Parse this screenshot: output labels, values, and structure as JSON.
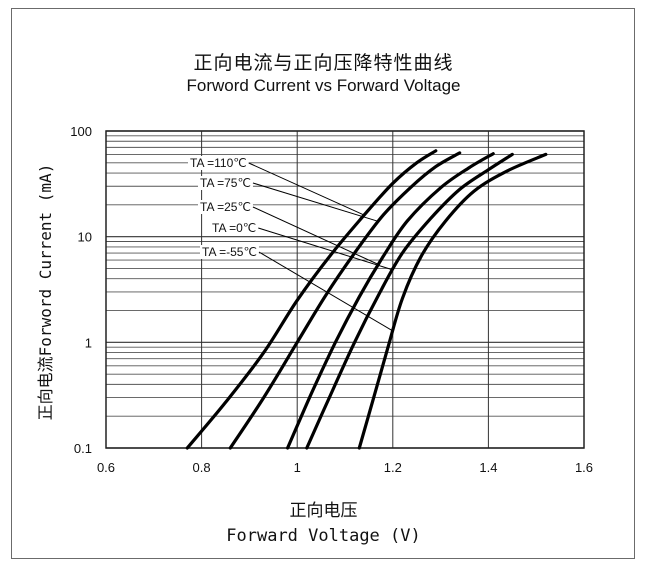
{
  "chart_data": {
    "type": "line",
    "title": "正向电流与正向压降特性曲线",
    "subtitle": "Forword Current vs Forward Voltage",
    "xlabel_cn": "正向电压",
    "xlabel": "Forward Voltage (V)",
    "ylabel": "正向电流Forword Current (mA)",
    "xlim": [
      0.6,
      1.6
    ],
    "ylim": [
      0.1,
      100
    ],
    "yscale": "log",
    "x_ticks": [
      "0.6",
      "0.8",
      "1",
      "1.2",
      "1.4",
      "1.6"
    ],
    "y_ticks": [
      "0.1",
      "1",
      "10",
      "100"
    ],
    "grid": true,
    "series": [
      {
        "name": "TA =110℃",
        "x": [
          0.77,
          0.85,
          0.93,
          1.0,
          1.07,
          1.14,
          1.2,
          1.25,
          1.29
        ],
        "y": [
          0.1,
          0.27,
          0.8,
          2.5,
          6.7,
          16,
          32,
          50,
          65
        ]
      },
      {
        "name": "TA =75℃",
        "x": [
          0.86,
          0.93,
          1.0,
          1.06,
          1.12,
          1.18,
          1.24,
          1.29,
          1.34
        ],
        "y": [
          0.1,
          0.3,
          1.0,
          2.8,
          7.0,
          16,
          30,
          46,
          62
        ]
      },
      {
        "name": "TA =25℃",
        "x": [
          0.98,
          1.03,
          1.08,
          1.13,
          1.18,
          1.23,
          1.3,
          1.36,
          1.41
        ],
        "y": [
          0.1,
          0.33,
          1.0,
          2.7,
          6.5,
          14,
          29,
          45,
          61
        ]
      },
      {
        "name": "TA =0℃",
        "x": [
          1.02,
          1.07,
          1.12,
          1.17,
          1.22,
          1.28,
          1.34,
          1.4,
          1.45
        ],
        "y": [
          0.1,
          0.32,
          1.0,
          2.8,
          7.0,
          15,
          28,
          43,
          60
        ]
      },
      {
        "name": "TA =-55℃",
        "x": [
          1.13,
          1.16,
          1.19,
          1.22,
          1.26,
          1.31,
          1.37,
          1.44,
          1.52
        ],
        "y": [
          0.1,
          0.3,
          0.9,
          2.6,
          6.6,
          14,
          27,
          42,
          60
        ]
      }
    ]
  }
}
